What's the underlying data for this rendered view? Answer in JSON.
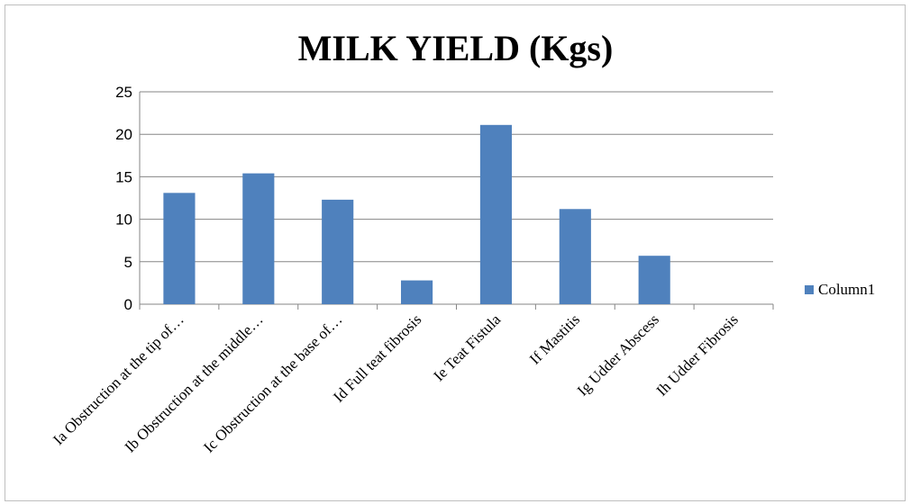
{
  "chart_data": {
    "type": "bar",
    "title": "MILK YIELD (Kgs)",
    "xlabel": "",
    "ylabel": "",
    "categories": [
      "Ia Obstruction at the tip of…",
      "Ib Obstruction at the middle…",
      "Ic Obstruction at the base of…",
      "Id Full teat fibrosis",
      "Ie Teat Fistula",
      "If Mastitis",
      "Ig Udder Abscess",
      "Ih Udder Fibrosis"
    ],
    "series": [
      {
        "name": "Column1",
        "values": [
          13.1,
          15.4,
          12.3,
          2.8,
          21.1,
          11.2,
          5.7,
          0
        ],
        "color": "#4f81bd"
      }
    ],
    "ylim": [
      0,
      25
    ],
    "yticks": [
      "0",
      "5",
      "10",
      "15",
      "20",
      "25"
    ],
    "grid": true,
    "legend": "right"
  }
}
